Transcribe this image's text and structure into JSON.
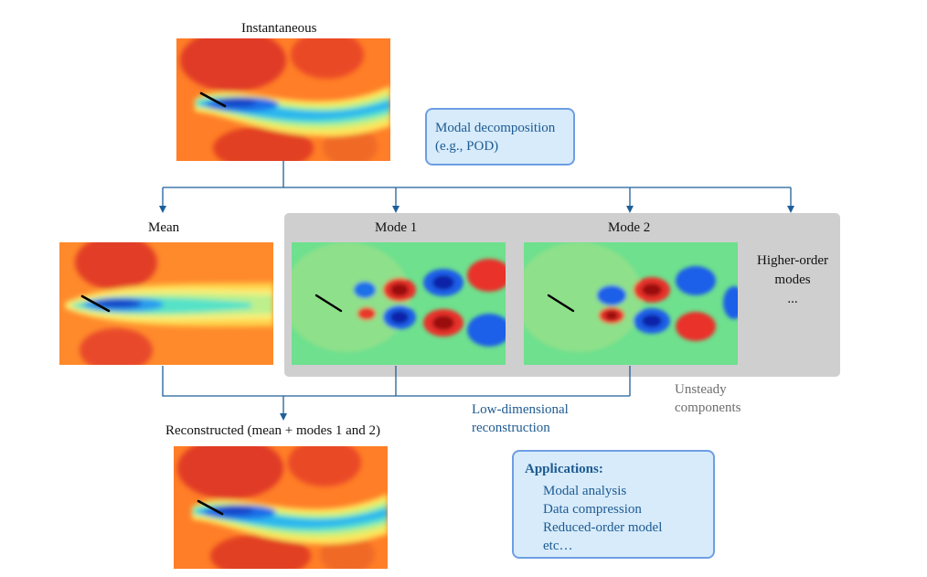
{
  "panels": {
    "instantaneous_label": "Instantaneous",
    "mean_label": "Mean",
    "mode1_label": "Mode 1",
    "mode2_label": "Mode 2",
    "higher_order_line1": "Higher-order",
    "higher_order_line2": "modes",
    "higher_order_line3": "...",
    "reconstructed_label": "Reconstructed (mean + modes 1 and 2)"
  },
  "annotations": {
    "modal_decomposition_line1": "Modal decomposition",
    "modal_decomposition_line2": "(e.g., POD)",
    "unsteady_line1": "Unsteady",
    "unsteady_line2": "components",
    "lowdim_line1": "Low-dimensional",
    "lowdim_line2": "reconstruction"
  },
  "applications": {
    "title": "Applications:",
    "items": [
      "Modal analysis",
      "Data compression",
      "Reduced-order model",
      "etc…"
    ]
  },
  "colors": {
    "arrow": "#1f5f99",
    "callout_fill": "#d7ebfb",
    "callout_border": "#6e9ee3",
    "panel_gray": "#cfcfcf",
    "text_blue": "#1d5a91",
    "text_gray": "#6d6d6d"
  }
}
